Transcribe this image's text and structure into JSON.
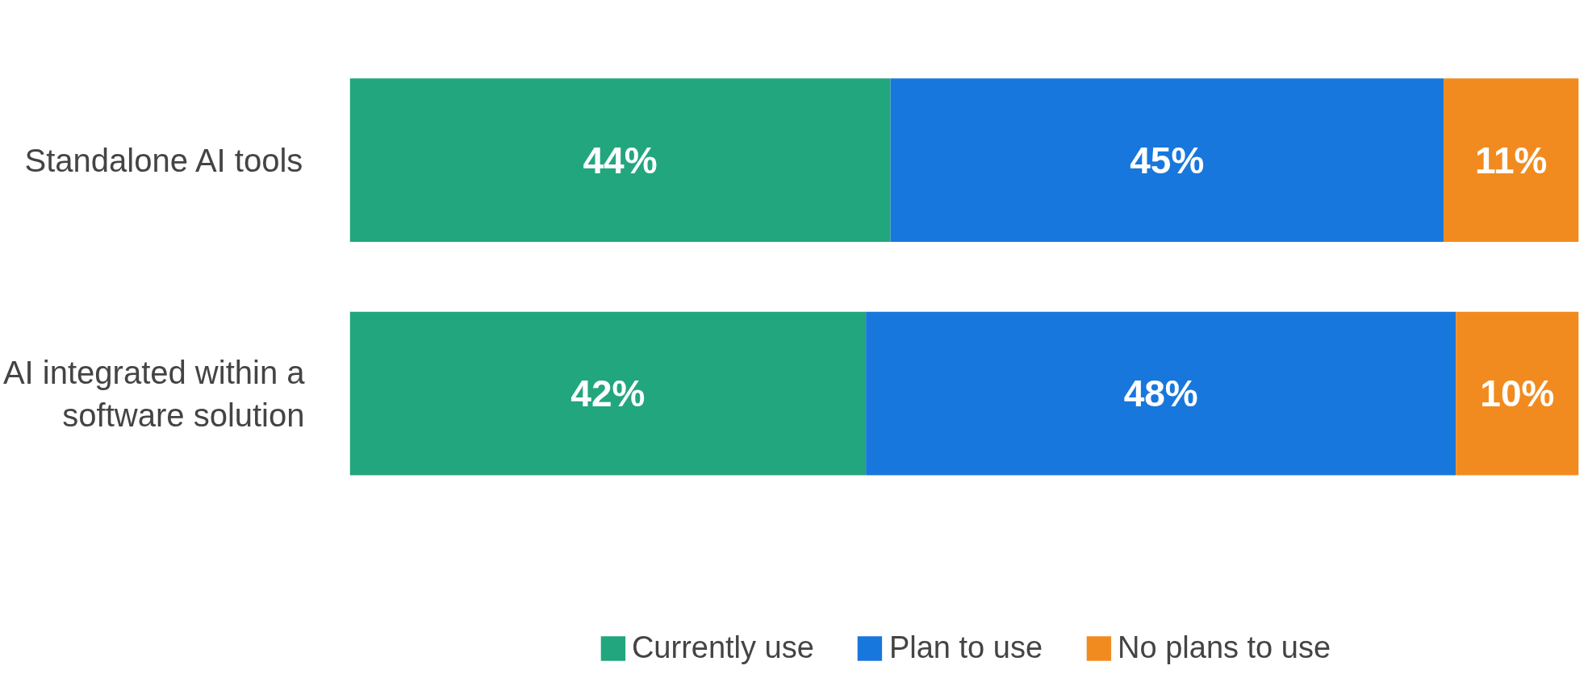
{
  "chart_data": {
    "type": "bar",
    "orientation": "horizontal",
    "stacked": true,
    "categories": [
      "Standalone AI tools",
      "AI integrated within a software solution"
    ],
    "series": [
      {
        "name": "Currently use",
        "color": "#22a67e",
        "values": [
          44,
          42
        ],
        "value_labels": [
          "44%",
          "42%"
        ]
      },
      {
        "name": "Plan to use",
        "color": "#1877dc",
        "values": [
          45,
          48
        ],
        "value_labels": [
          "45%",
          "48%"
        ]
      },
      {
        "name": "No plans to use",
        "color": "#f28b1f",
        "values": [
          11,
          10
        ],
        "value_labels": [
          "11%",
          "10%"
        ]
      }
    ],
    "legend": "bottom",
    "grid": false
  }
}
